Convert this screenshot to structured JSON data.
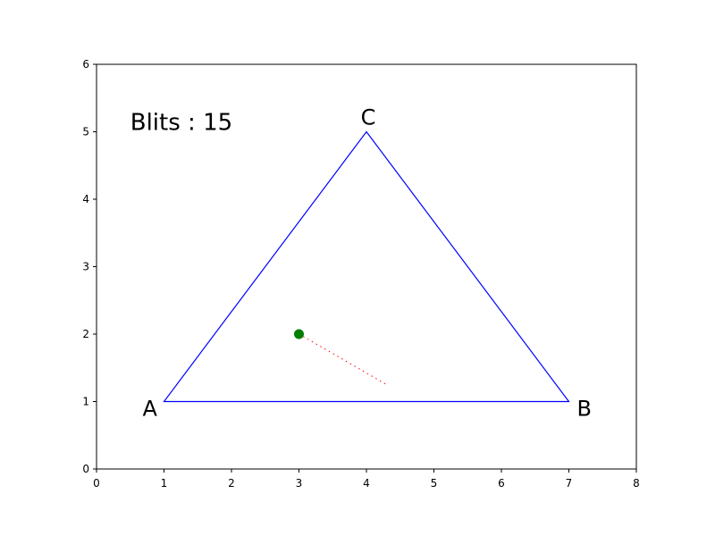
{
  "chart_data": {
    "type": "scatter",
    "xlim": [
      0,
      8
    ],
    "ylim": [
      0,
      6
    ],
    "x_ticks": [
      "0",
      "1",
      "2",
      "3",
      "4",
      "5",
      "6",
      "7",
      "8"
    ],
    "y_ticks": [
      "0",
      "1",
      "2",
      "3",
      "4",
      "5",
      "6"
    ],
    "grid": false,
    "triangle": {
      "color": "#0000ff",
      "vertices": [
        {
          "label": "A",
          "x": 1,
          "y": 1
        },
        {
          "label": "B",
          "x": 7,
          "y": 1
        },
        {
          "label": "C",
          "x": 4,
          "y": 5
        }
      ]
    },
    "point": {
      "x": 3,
      "y": 2,
      "color": "#008000"
    },
    "trail": {
      "color": "#ff0000",
      "style": "dotted",
      "from": {
        "x": 3,
        "y": 2
      },
      "to": {
        "x": 4.3,
        "y": 1.25
      }
    },
    "annotation": {
      "text": "Blits : 15",
      "x": 0.5,
      "y": 5.0
    }
  }
}
